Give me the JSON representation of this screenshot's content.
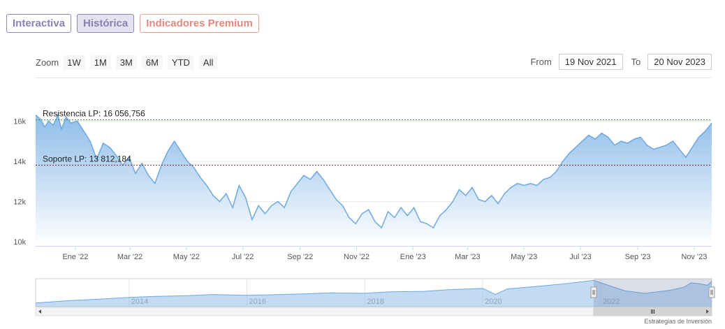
{
  "tabs": {
    "interactiva": "Interactiva",
    "historica": "Histórica",
    "premium": "Indicadores Premium"
  },
  "range_selector": {
    "zoom_label": "Zoom",
    "buttons": [
      "1W",
      "1M",
      "3M",
      "6M",
      "YTD",
      "All"
    ],
    "from_label": "From",
    "from_value": "19 Nov 2021",
    "to_label": "To",
    "to_value": "20 Nov 2023"
  },
  "credits": "Estrategias de Inversión",
  "colors": {
    "line": "#6da9e2",
    "fill_top": "#8fbde9",
    "fill_bottom": "#ffffff",
    "resistance": "#2f9a3a",
    "support": "#8a1c1c"
  },
  "chart_data": {
    "type": "area",
    "title": "",
    "xlabel": "",
    "ylabel": "",
    "xlim": [
      "2021-11-19",
      "2023-11-20"
    ],
    "ylim": [
      9800,
      16600
    ],
    "y_ticks": [
      10000,
      12000,
      14000,
      16000
    ],
    "y_tick_labels": [
      "10k",
      "12k",
      "14k",
      "16k"
    ],
    "x_ticks": [
      "2022-01-01",
      "2022-03-01",
      "2022-05-01",
      "2022-07-01",
      "2022-09-01",
      "2022-11-01",
      "2023-01-01",
      "2023-03-01",
      "2023-05-01",
      "2023-07-01",
      "2023-09-01",
      "2023-11-01"
    ],
    "x_tick_labels": [
      "Ene '22",
      "Mar '22",
      "May '22",
      "Jul '22",
      "Sep '22",
      "Nov '22",
      "Ene '23",
      "Mar '23",
      "May '23",
      "Jul '23",
      "Sep '23",
      "Nov '23"
    ],
    "grid": true,
    "series": [
      {
        "values": [
          [
            "2021-11-19",
            16300
          ],
          [
            "2021-11-24",
            16100
          ],
          [
            "2021-11-29",
            15700
          ],
          [
            "2021-12-03",
            16000
          ],
          [
            "2021-12-08",
            15800
          ],
          [
            "2021-12-13",
            16300
          ],
          [
            "2021-12-17",
            15600
          ],
          [
            "2021-12-22",
            16200
          ],
          [
            "2021-12-27",
            15900
          ],
          [
            "2022-01-03",
            16000
          ],
          [
            "2022-01-10",
            15500
          ],
          [
            "2022-01-17",
            15000
          ],
          [
            "2022-01-24",
            14100
          ],
          [
            "2022-01-31",
            14900
          ],
          [
            "2022-02-07",
            14700
          ],
          [
            "2022-02-14",
            14300
          ],
          [
            "2022-02-21",
            13800
          ],
          [
            "2022-02-28",
            14200
          ],
          [
            "2022-03-07",
            13400
          ],
          [
            "2022-03-14",
            13900
          ],
          [
            "2022-03-21",
            13300
          ],
          [
            "2022-03-28",
            12900
          ],
          [
            "2022-04-04",
            13800
          ],
          [
            "2022-04-11",
            14500
          ],
          [
            "2022-04-18",
            15000
          ],
          [
            "2022-04-25",
            14500
          ],
          [
            "2022-05-02",
            14000
          ],
          [
            "2022-05-09",
            13700
          ],
          [
            "2022-05-16",
            13200
          ],
          [
            "2022-05-23",
            12800
          ],
          [
            "2022-05-30",
            12300
          ],
          [
            "2022-06-06",
            12000
          ],
          [
            "2022-06-13",
            12400
          ],
          [
            "2022-06-20",
            11700
          ],
          [
            "2022-06-27",
            12800
          ],
          [
            "2022-07-04",
            12200
          ],
          [
            "2022-07-11",
            11100
          ],
          [
            "2022-07-18",
            11800
          ],
          [
            "2022-07-25",
            11400
          ],
          [
            "2022-08-01",
            11800
          ],
          [
            "2022-08-08",
            12000
          ],
          [
            "2022-08-15",
            11700
          ],
          [
            "2022-08-22",
            12500
          ],
          [
            "2022-08-29",
            12900
          ],
          [
            "2022-09-05",
            13300
          ],
          [
            "2022-09-12",
            13100
          ],
          [
            "2022-09-19",
            13500
          ],
          [
            "2022-09-26",
            13100
          ],
          [
            "2022-10-03",
            12600
          ],
          [
            "2022-10-10",
            12100
          ],
          [
            "2022-10-17",
            11800
          ],
          [
            "2022-10-24",
            11200
          ],
          [
            "2022-10-31",
            10900
          ],
          [
            "2022-11-07",
            11400
          ],
          [
            "2022-11-14",
            11600
          ],
          [
            "2022-11-21",
            11000
          ],
          [
            "2022-11-28",
            10700
          ],
          [
            "2022-12-05",
            11500
          ],
          [
            "2022-12-12",
            11200
          ],
          [
            "2022-12-19",
            11700
          ],
          [
            "2022-12-26",
            11300
          ],
          [
            "2023-01-02",
            11700
          ],
          [
            "2023-01-09",
            11000
          ],
          [
            "2023-01-16",
            10900
          ],
          [
            "2023-01-23",
            10700
          ],
          [
            "2023-01-30",
            11300
          ],
          [
            "2023-02-06",
            11600
          ],
          [
            "2023-02-13",
            12000
          ],
          [
            "2023-02-20",
            12600
          ],
          [
            "2023-02-27",
            12300
          ],
          [
            "2023-03-06",
            12700
          ],
          [
            "2023-03-13",
            12100
          ],
          [
            "2023-03-20",
            12000
          ],
          [
            "2023-03-27",
            12300
          ],
          [
            "2023-04-03",
            11900
          ],
          [
            "2023-04-10",
            12400
          ],
          [
            "2023-04-17",
            12700
          ],
          [
            "2023-04-24",
            12900
          ],
          [
            "2023-05-01",
            12800
          ],
          [
            "2023-05-08",
            12900
          ],
          [
            "2023-05-15",
            12800
          ],
          [
            "2023-05-22",
            13100
          ],
          [
            "2023-05-29",
            13200
          ],
          [
            "2023-06-05",
            13500
          ],
          [
            "2023-06-12",
            14000
          ],
          [
            "2023-06-19",
            14400
          ],
          [
            "2023-06-26",
            14700
          ],
          [
            "2023-07-03",
            15000
          ],
          [
            "2023-07-10",
            15300
          ],
          [
            "2023-07-17",
            15100
          ],
          [
            "2023-07-24",
            15400
          ],
          [
            "2023-07-31",
            15200
          ],
          [
            "2023-08-07",
            14800
          ],
          [
            "2023-08-14",
            15000
          ],
          [
            "2023-08-21",
            14900
          ],
          [
            "2023-08-28",
            15100
          ],
          [
            "2023-09-04",
            15200
          ],
          [
            "2023-09-11",
            14800
          ],
          [
            "2023-09-18",
            14600
          ],
          [
            "2023-09-25",
            14700
          ],
          [
            "2023-10-02",
            14800
          ],
          [
            "2023-10-09",
            15000
          ],
          [
            "2023-10-16",
            14600
          ],
          [
            "2023-10-23",
            14200
          ],
          [
            "2023-10-30",
            14700
          ],
          [
            "2023-11-06",
            15200
          ],
          [
            "2023-11-13",
            15500
          ],
          [
            "2023-11-20",
            15900
          ]
        ]
      }
    ],
    "plot_lines": [
      {
        "label": "Resistencia LP: 16 056,756",
        "value": 16056.756
      },
      {
        "label": "Soporte LP: 13 812,184",
        "value": 13812.184
      }
    ],
    "navigator": {
      "x_tick_labels": [
        "2014",
        "2016",
        "2018",
        "2020",
        "2022"
      ],
      "x_ticks": [
        "2014-01-01",
        "2016-01-01",
        "2018-01-01",
        "2020-01-01",
        "2022-01-01"
      ],
      "xlim": [
        "2012-06-01",
        "2023-11-20"
      ],
      "values": [
        [
          "2012-06-01",
          7000
        ],
        [
          "2013-01-01",
          8000
        ],
        [
          "2013-06-01",
          8500
        ],
        [
          "2014-01-01",
          9300
        ],
        [
          "2014-06-01",
          9700
        ],
        [
          "2015-01-01",
          10000
        ],
        [
          "2015-06-01",
          10500
        ],
        [
          "2016-01-01",
          10200
        ],
        [
          "2016-06-01",
          10400
        ],
        [
          "2017-01-01",
          10800
        ],
        [
          "2017-06-01",
          11200
        ],
        [
          "2018-01-01",
          11000
        ],
        [
          "2018-06-01",
          11600
        ],
        [
          "2019-01-01",
          11800
        ],
        [
          "2019-06-01",
          12500
        ],
        [
          "2020-01-01",
          13000
        ],
        [
          "2020-03-20",
          10500
        ],
        [
          "2020-06-01",
          12800
        ],
        [
          "2021-01-01",
          14000
        ],
        [
          "2021-06-01",
          15000
        ],
        [
          "2021-11-19",
          16300
        ],
        [
          "2022-03-01",
          14000
        ],
        [
          "2022-06-01",
          12000
        ],
        [
          "2022-10-01",
          11000
        ],
        [
          "2023-01-01",
          11700
        ],
        [
          "2023-03-01",
          12200
        ],
        [
          "2023-06-01",
          13500
        ],
        [
          "2023-07-15",
          15300
        ],
        [
          "2023-09-01",
          15000
        ],
        [
          "2023-10-25",
          14300
        ],
        [
          "2023-11-20",
          15900
        ]
      ]
    }
  }
}
